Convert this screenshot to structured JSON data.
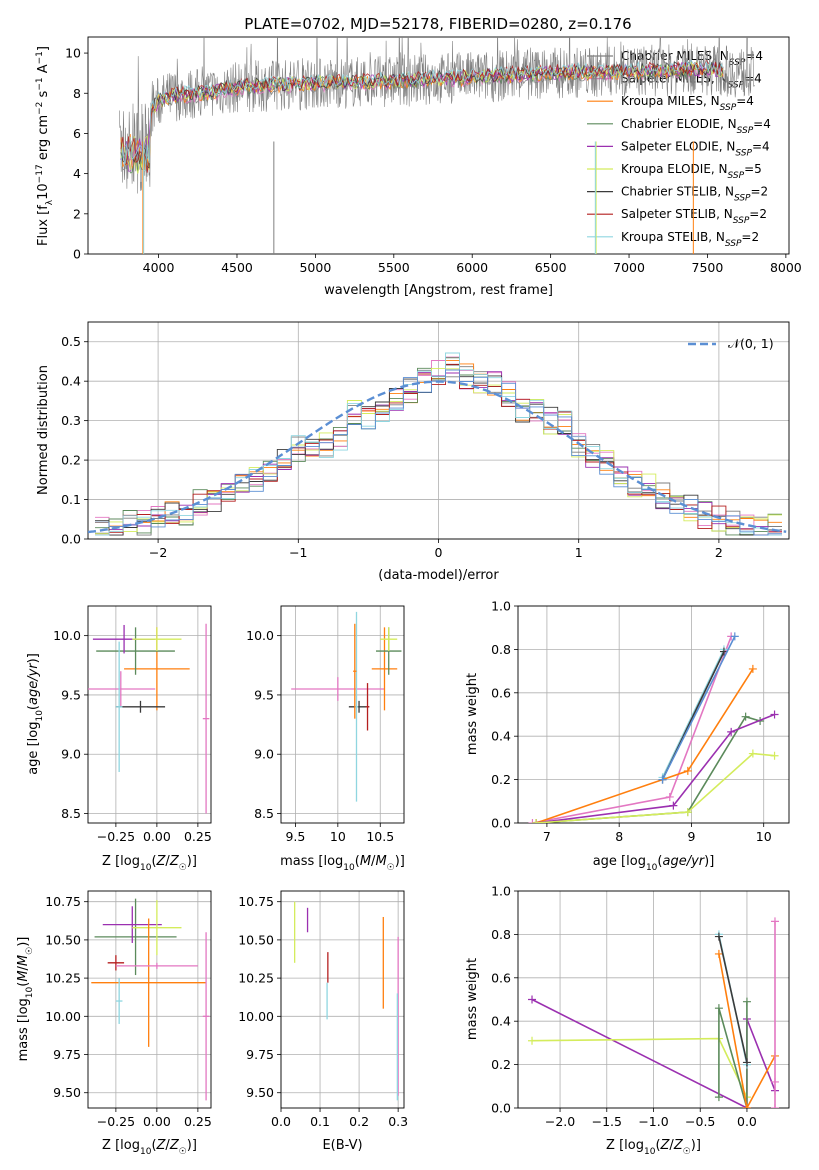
{
  "figure_title": "PLATE=0702, MJD=52178, FIBERID=0280, z=0.176",
  "colors": {
    "chab_miles": "#7f7f7f",
    "salp_miles": "#e377c2",
    "krou_miles": "#ff7f0e",
    "chab_elodie": "#5b8a5b",
    "salp_elodie": "#9b30b0",
    "krou_elodie": "#d4ec5c",
    "chab_stelib": "#3b3b3b",
    "salp_stelib": "#b41f1f",
    "krou_stelib": "#8fd6e0",
    "gauss": "#5b8fd4"
  },
  "chart_data": [
    {
      "type": "line",
      "title": "PLATE=0702, MJD=52178, FIBERID=0280, z=0.176",
      "xlabel": "wavelength [Angstrom, rest frame]",
      "ylabel": "Flux [f_λ 10^-17 erg cm^-2 s^-1 A^-1]",
      "xlim": [
        3550,
        8020
      ],
      "ylim": [
        0,
        10.8
      ],
      "xticks": [
        4000,
        4500,
        5000,
        5500,
        6000,
        6500,
        7000,
        7500,
        8000
      ],
      "yticks": [
        0,
        2,
        4,
        6,
        8,
        10
      ],
      "legend_position": "top-right",
      "series": [
        {
          "name": "Chabrier MILES, N_SSP=4",
          "color": "#7f7f7f"
        },
        {
          "name": "Salpeter MILES, N_SSP=4",
          "color": "#e377c2"
        },
        {
          "name": "Kroupa MILES, N_SSP=4",
          "color": "#ff7f0e"
        },
        {
          "name": "Chabrier ELODIE, N_SSP=4",
          "color": "#5b8a5b"
        },
        {
          "name": "Salpeter ELODIE, N_SSP=4",
          "color": "#9b30b0"
        },
        {
          "name": "Kroupa ELODIE, N_SSP=5",
          "color": "#d4ec5c"
        },
        {
          "name": "Chabrier STELIB, N_SSP=2",
          "color": "#3b3b3b"
        },
        {
          "name": "Salpeter STELIB, N_SSP=2",
          "color": "#b41f1f"
        },
        {
          "name": "Kroupa STELIB, N_SSP=2",
          "color": "#8fd6e0"
        }
      ],
      "continuum": {
        "x": [
          3750,
          3900,
          4000,
          4100,
          4300,
          4500,
          5000,
          5500,
          6000,
          6500,
          7000,
          7500,
          7800
        ],
        "y": [
          5.5,
          6.5,
          7.6,
          7.9,
          8.0,
          8.3,
          8.5,
          8.6,
          8.8,
          9.0,
          9.1,
          9.2,
          9.0
        ]
      }
    },
    {
      "type": "line",
      "xlabel": "(data-model)/error",
      "ylabel": "Normed distribution",
      "xlim": [
        -2.5,
        2.5
      ],
      "ylim": [
        0,
        0.55
      ],
      "xticks": [
        -2,
        -1,
        0,
        1,
        2
      ],
      "yticks": [
        0.0,
        0.1,
        0.2,
        0.3,
        0.4,
        0.5
      ],
      "legend_position": "top-right",
      "series": [
        {
          "name": "𝒩(0, 1)",
          "color": "#5b8fd4"
        }
      ],
      "hist_bin_centers": [
        -2.4,
        -2.3,
        -2.2,
        -2.1,
        -2.0,
        -1.9,
        -1.8,
        -1.7,
        -1.6,
        -1.5,
        -1.4,
        -1.3,
        -1.2,
        -1.1,
        -1.0,
        -0.9,
        -0.8,
        -0.7,
        -0.6,
        -0.5,
        -0.4,
        -0.3,
        -0.2,
        -0.1,
        0.0,
        0.1,
        0.2,
        0.3,
        0.4,
        0.5,
        0.6,
        0.7,
        0.8,
        0.9,
        1.0,
        1.1,
        1.2,
        1.3,
        1.4,
        1.5,
        1.6,
        1.7,
        1.8,
        1.9,
        2.0,
        2.1,
        2.2,
        2.3,
        2.4
      ],
      "hist_base": [
        0.03,
        0.03,
        0.04,
        0.04,
        0.05,
        0.06,
        0.07,
        0.09,
        0.1,
        0.11,
        0.13,
        0.15,
        0.18,
        0.2,
        0.23,
        0.22,
        0.24,
        0.26,
        0.32,
        0.31,
        0.33,
        0.36,
        0.38,
        0.4,
        0.42,
        0.44,
        0.41,
        0.4,
        0.39,
        0.37,
        0.33,
        0.33,
        0.3,
        0.29,
        0.24,
        0.21,
        0.19,
        0.16,
        0.14,
        0.13,
        0.11,
        0.09,
        0.08,
        0.06,
        0.05,
        0.04,
        0.03,
        0.03,
        0.03
      ]
    },
    {
      "type": "scatter",
      "xlabel": "Z [log10(Z/Z☉)]",
      "ylabel": "age  [log10(age/yr)]",
      "xlim": [
        -0.42,
        0.33
      ],
      "ylim": [
        8.42,
        10.25
      ],
      "xticks": [
        -0.25,
        0.0,
        0.25
      ],
      "yticks": [
        8.5,
        9.0,
        9.5,
        10.0
      ],
      "points": [
        {
          "x": -0.22,
          "xerr": 0.21,
          "y": 9.55,
          "yerr": 0.15,
          "color": "#e377c2"
        },
        {
          "x": 0.0,
          "xerr": 0.2,
          "y": 9.72,
          "yerr": 0.35,
          "color": "#ff7f0e"
        },
        {
          "x": -0.13,
          "xerr": 0.24,
          "y": 9.87,
          "yerr": 0.2,
          "color": "#5b8a5b"
        },
        {
          "x": -0.2,
          "xerr": 0.19,
          "y": 9.97,
          "yerr": 0.12,
          "color": "#9b30b0"
        },
        {
          "x": 0.0,
          "xerr": 0.15,
          "y": 9.97,
          "yerr": 0.1,
          "color": "#d4ec5c"
        },
        {
          "x": 0.3,
          "xerr": 0.02,
          "y": 9.3,
          "yerr": 0.8,
          "color": "#e377c2"
        },
        {
          "x": -0.1,
          "xerr": 0.15,
          "y": 9.4,
          "yerr": 0.05,
          "color": "#3b3b3b"
        },
        {
          "x": -0.23,
          "xerr": 0.02,
          "y": 9.4,
          "yerr": 0.55,
          "color": "#8fd6e0"
        }
      ]
    },
    {
      "type": "scatter",
      "xlabel": "mass [log10(M/M☉)]",
      "ylabel": "",
      "xlim": [
        9.33,
        10.78
      ],
      "ylim": [
        8.42,
        10.25
      ],
      "xticks": [
        9.5,
        10.0,
        10.5
      ],
      "yticks": [
        8.5,
        9.0,
        9.5,
        10.0
      ],
      "points": [
        {
          "x": 10.0,
          "xerr": 0.55,
          "y": 9.55,
          "yerr": 0.1,
          "color": "#e377c2"
        },
        {
          "x": 10.55,
          "xerr": 0.15,
          "y": 9.72,
          "yerr": 0.35,
          "color": "#ff7f0e"
        },
        {
          "x": 10.6,
          "xerr": 0.15,
          "y": 9.87,
          "yerr": 0.2,
          "color": "#5b8a5b"
        },
        {
          "x": 10.6,
          "xerr": 0.1,
          "y": 9.97,
          "yerr": 0.1,
          "color": "#d4ec5c"
        },
        {
          "x": 10.25,
          "xerr": 0.12,
          "y": 9.4,
          "yerr": 0.05,
          "color": "#3b3b3b"
        },
        {
          "x": 10.22,
          "xerr": 0.02,
          "y": 9.4,
          "yerr": 0.8,
          "color": "#8fd6e0"
        },
        {
          "x": 10.35,
          "xerr": 0.02,
          "y": 9.4,
          "yerr": 0.2,
          "color": "#b41f1f"
        },
        {
          "x": 10.2,
          "xerr": 0.02,
          "y": 9.7,
          "yerr": 0.4,
          "color": "#ff7f0e"
        }
      ]
    },
    {
      "type": "line",
      "xlabel": "age  [log10(age/yr)]",
      "ylabel": "mass weight",
      "xlim": [
        6.6,
        10.35
      ],
      "ylim": [
        0,
        1.0
      ],
      "xticks": [
        7,
        8,
        9,
        10
      ],
      "yticks": [
        0.0,
        0.2,
        0.4,
        0.6,
        0.8,
        1.0
      ],
      "series": [
        {
          "color": "#e377c2",
          "x": [
            6.8,
            8.7,
            9.55
          ],
          "y": [
            0.0,
            0.12,
            0.86
          ]
        },
        {
          "color": "#ff7f0e",
          "x": [
            6.85,
            8.95,
            9.85
          ],
          "y": [
            0.0,
            0.24,
            0.71
          ]
        },
        {
          "color": "#5b8a5b",
          "x": [
            6.85,
            8.95,
            9.75,
            9.95
          ],
          "y": [
            0.0,
            0.05,
            0.49,
            0.47
          ]
        },
        {
          "color": "#9b30b0",
          "x": [
            6.85,
            8.75,
            9.55,
            10.15
          ],
          "y": [
            0.0,
            0.08,
            0.42,
            0.5
          ]
        },
        {
          "color": "#d4ec5c",
          "x": [
            6.85,
            8.95,
            9.85,
            10.15
          ],
          "y": [
            0.0,
            0.05,
            0.32,
            0.31
          ]
        },
        {
          "color": "#8fd6e0",
          "x": [
            8.6,
            9.45
          ],
          "y": [
            0.21,
            0.8
          ]
        },
        {
          "color": "#3b3b3b",
          "x": [
            8.6,
            9.45
          ],
          "y": [
            0.2,
            0.79
          ]
        },
        {
          "color": "#5b8fd4",
          "x": [
            8.6,
            9.6
          ],
          "y": [
            0.2,
            0.86
          ]
        }
      ]
    },
    {
      "type": "scatter",
      "xlabel": "Z [log10(Z/Z☉)]",
      "ylabel": "mass [log10(M/M☉)]",
      "xlim": [
        -0.42,
        0.33
      ],
      "ylim": [
        9.4,
        10.82
      ],
      "xticks": [
        -0.25,
        0.0,
        0.25
      ],
      "yticks": [
        9.5,
        9.75,
        10.0,
        10.25,
        10.5,
        10.75
      ],
      "points": [
        {
          "x": -0.13,
          "xerr": 0.25,
          "y": 10.52,
          "yerr": 0.25,
          "color": "#5b8a5b"
        },
        {
          "x": -0.15,
          "xerr": 0.18,
          "y": 10.6,
          "yerr": 0.12,
          "color": "#9b30b0"
        },
        {
          "x": 0.0,
          "xerr": 0.15,
          "y": 10.58,
          "yerr": 0.18,
          "color": "#d4ec5c"
        },
        {
          "x": -0.05,
          "xerr": 0.35,
          "y": 10.22,
          "yerr": 0.42,
          "color": "#ff7f0e"
        },
        {
          "x": 0.3,
          "xerr": 0.02,
          "y": 10.0,
          "yerr": 0.55,
          "color": "#e377c2"
        },
        {
          "x": -0.25,
          "xerr": 0.05,
          "y": 10.35,
          "yerr": 0.05,
          "color": "#b41f1f"
        },
        {
          "x": -0.23,
          "xerr": 0.02,
          "y": 10.1,
          "yerr": 0.15,
          "color": "#8fd6e0"
        },
        {
          "x": 0.0,
          "xerr": 0.25,
          "y": 10.33,
          "yerr": 0.02,
          "color": "#e377c2"
        }
      ]
    },
    {
      "type": "scatter",
      "xlabel": "E(B-V)",
      "ylabel": "",
      "xlim": [
        0.0,
        0.315
      ],
      "ylim": [
        9.4,
        10.82
      ],
      "xticks": [
        0.0,
        0.1,
        0.2,
        0.3
      ],
      "yticks": [
        9.5,
        9.75,
        10.0,
        10.25,
        10.5,
        10.75
      ],
      "points": [
        {
          "x": 0.035,
          "y": 10.55,
          "yerr": 0.2,
          "color": "#d4ec5c"
        },
        {
          "x": 0.068,
          "y": 10.63,
          "yerr": 0.08,
          "color": "#9b30b0"
        },
        {
          "x": 0.12,
          "y": 10.32,
          "yerr": 0.1,
          "color": "#b41f1f"
        },
        {
          "x": 0.118,
          "y": 10.1,
          "yerr": 0.12,
          "color": "#8fd6e0"
        },
        {
          "x": 0.262,
          "y": 10.35,
          "yerr": 0.3,
          "color": "#ff7f0e"
        },
        {
          "x": 0.3,
          "y": 10.0,
          "yerr": 0.52,
          "color": "#e377c2"
        },
        {
          "x": 0.298,
          "y": 9.8,
          "yerr": 0.35,
          "color": "#8fd6e0"
        }
      ]
    },
    {
      "type": "line",
      "xlabel": "Z [log10(Z/Z☉)]",
      "ylabel": "mass weight",
      "xlim": [
        -2.45,
        0.45
      ],
      "ylim": [
        0,
        1.0
      ],
      "xticks": [
        -2.0,
        -1.5,
        -1.0,
        -0.5,
        0.0
      ],
      "yticks": [
        0.0,
        0.2,
        0.4,
        0.6,
        0.8,
        1.0
      ],
      "series": [
        {
          "color": "#9b30b0",
          "x": [
            -2.3,
            0.0,
            0.0,
            0.3
          ],
          "y": [
            0.5,
            0.0,
            0.41,
            0.08
          ]
        },
        {
          "color": "#d4ec5c",
          "x": [
            -2.3,
            -0.3,
            0.0
          ],
          "y": [
            0.31,
            0.32,
            0.05
          ]
        },
        {
          "color": "#5b8a5b",
          "x": [
            -0.3,
            -0.3,
            0.0,
            0.0
          ],
          "y": [
            0.05,
            0.46,
            0.0,
            0.49
          ]
        },
        {
          "color": "#ff7f0e",
          "x": [
            -0.3,
            0.0,
            0.3
          ],
          "y": [
            0.71,
            0.0,
            0.24
          ]
        },
        {
          "color": "#e377c2",
          "x": [
            0.3,
            0.3,
            0.3
          ],
          "y": [
            0.86,
            0.12,
            0.0
          ]
        },
        {
          "color": "#8fd6e0",
          "x": [
            -0.3,
            0.0
          ],
          "y": [
            0.8,
            0.2
          ]
        },
        {
          "color": "#3b3b3b",
          "x": [
            -0.3,
            0.0
          ],
          "y": [
            0.79,
            0.21
          ]
        }
      ]
    }
  ]
}
